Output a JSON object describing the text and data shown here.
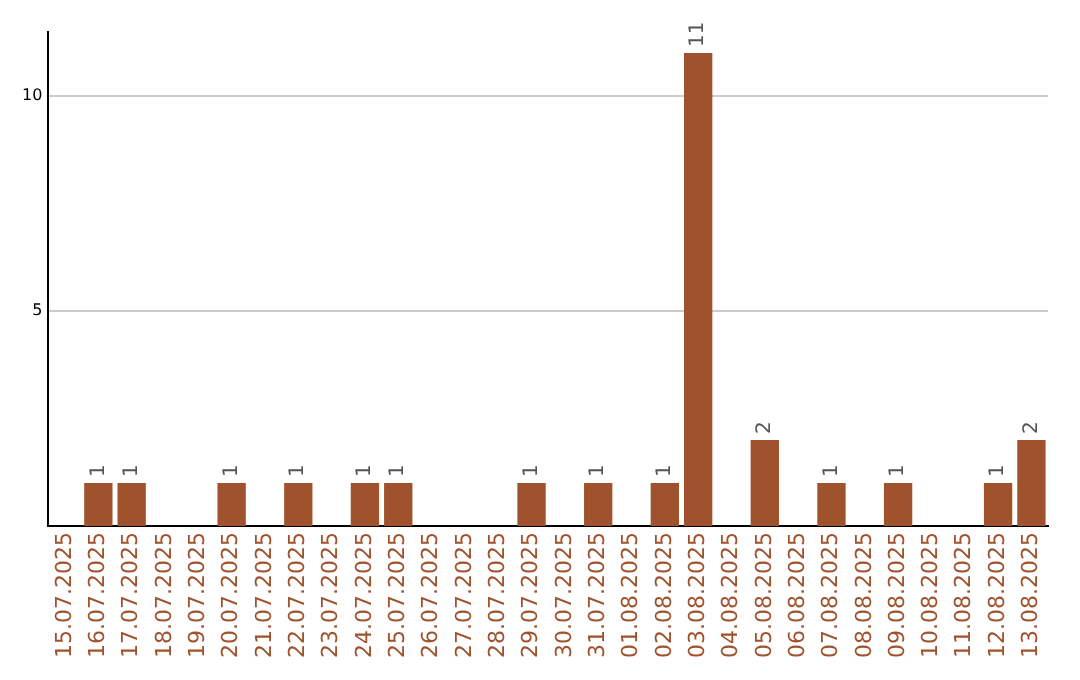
{
  "chart_data": {
    "type": "bar",
    "categories": [
      "15.07.2025",
      "16.07.2025",
      "17.07.2025",
      "18.07.2025",
      "19.07.2025",
      "20.07.2025",
      "21.07.2025",
      "22.07.2025",
      "23.07.2025",
      "24.07.2025",
      "25.07.2025",
      "26.07.2025",
      "27.07.2025",
      "28.07.2025",
      "29.07.2025",
      "30.07.2025",
      "31.07.2025",
      "01.08.2025",
      "02.08.2025",
      "03.08.2025",
      "04.08.2025",
      "05.08.2025",
      "06.08.2025",
      "07.08.2025",
      "08.08.2025",
      "09.08.2025",
      "10.08.2025",
      "11.08.2025",
      "12.08.2025",
      "13.08.2025"
    ],
    "values": [
      0,
      1,
      1,
      0,
      0,
      1,
      0,
      1,
      0,
      1,
      1,
      0,
      0,
      0,
      1,
      0,
      1,
      0,
      1,
      11,
      0,
      2,
      0,
      1,
      0,
      1,
      0,
      0,
      1,
      2
    ],
    "value_labels": [
      null,
      "1",
      "1",
      null,
      null,
      "1",
      null,
      "1",
      null,
      "1",
      "1",
      null,
      null,
      null,
      "1",
      null,
      "1",
      null,
      "1",
      "11",
      null,
      "2",
      null,
      "1",
      null,
      "1",
      null,
      null,
      "1",
      "2"
    ],
    "color": "#a0522d",
    "ylim": [
      0,
      11.5
    ],
    "yticks": [
      5,
      10
    ],
    "grid": "y",
    "legend": false
  }
}
